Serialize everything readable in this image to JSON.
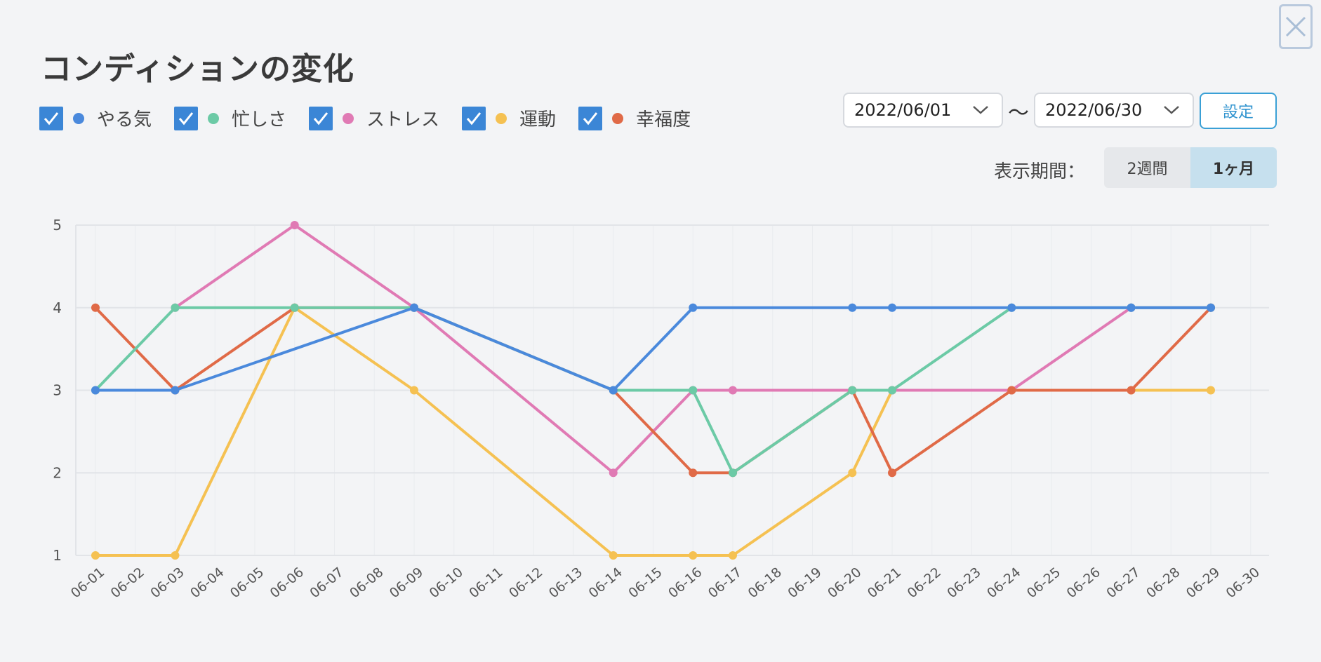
{
  "header": {
    "title": "コンディションの変化",
    "close_label": "×"
  },
  "legend": [
    {
      "label": "やる気",
      "color": "#4a89dc",
      "checked": true
    },
    {
      "label": "忙しさ",
      "color": "#6ccaa6",
      "checked": true
    },
    {
      "label": "ストレス",
      "color": "#e07ab4",
      "checked": true
    },
    {
      "label": "運動",
      "color": "#f5c152",
      "checked": true
    },
    {
      "label": "幸福度",
      "color": "#e06a47",
      "checked": true
    }
  ],
  "date_range": {
    "start": "2022/06/01",
    "separator": "〜",
    "end": "2022/06/30",
    "set_label": "設定"
  },
  "period": {
    "label": "表示期間：",
    "options": [
      "2週間",
      "1ヶ月"
    ],
    "selected": "1ヶ月"
  },
  "chart_data": {
    "type": "line",
    "title": "",
    "xlabel": "",
    "ylabel": "",
    "ylim": [
      1,
      5
    ],
    "y_ticks": [
      1,
      2,
      3,
      4,
      5
    ],
    "grid": true,
    "categories": [
      "06-01",
      "06-02",
      "06-03",
      "06-04",
      "06-05",
      "06-06",
      "06-07",
      "06-08",
      "06-09",
      "06-10",
      "06-11",
      "06-12",
      "06-13",
      "06-14",
      "06-15",
      "06-16",
      "06-17",
      "06-18",
      "06-19",
      "06-20",
      "06-21",
      "06-22",
      "06-23",
      "06-24",
      "06-25",
      "06-26",
      "06-27",
      "06-28",
      "06-29",
      "06-30"
    ],
    "series": [
      {
        "name": "運動",
        "color": "#f5c152",
        "points": [
          [
            "06-01",
            1
          ],
          [
            "06-03",
            1
          ],
          [
            "06-06",
            4
          ],
          [
            "06-09",
            3
          ],
          [
            "06-14",
            1
          ],
          [
            "06-16",
            1
          ],
          [
            "06-17",
            1
          ],
          [
            "06-20",
            2
          ],
          [
            "06-21",
            3
          ],
          [
            "06-24",
            3
          ],
          [
            "06-27",
            3
          ],
          [
            "06-29",
            3
          ]
        ]
      },
      {
        "name": "ストレス",
        "color": "#e07ab4",
        "points": [
          [
            "06-03",
            4
          ],
          [
            "06-06",
            5
          ],
          [
            "06-09",
            4
          ],
          [
            "06-14",
            2
          ],
          [
            "06-16",
            3
          ],
          [
            "06-17",
            3
          ],
          [
            "06-20",
            3
          ],
          [
            "06-21",
            3
          ],
          [
            "06-24",
            3
          ],
          [
            "06-27",
            4
          ],
          [
            "06-29",
            4
          ]
        ]
      },
      {
        "name": "幸福度",
        "color": "#e06a47",
        "points": [
          [
            "06-01",
            4
          ],
          [
            "06-03",
            3
          ],
          [
            "06-06",
            4
          ],
          [
            "06-09",
            4
          ],
          [
            "06-14",
            3
          ],
          [
            "06-16",
            2
          ],
          [
            "06-17",
            2
          ],
          [
            "06-20",
            3
          ],
          [
            "06-21",
            2
          ],
          [
            "06-24",
            3
          ],
          [
            "06-27",
            3
          ],
          [
            "06-29",
            4
          ]
        ]
      },
      {
        "name": "忙しさ",
        "color": "#6ccaa6",
        "points": [
          [
            "06-01",
            3
          ],
          [
            "06-03",
            4
          ],
          [
            "06-06",
            4
          ],
          [
            "06-09",
            4
          ],
          [
            "06-14",
            3
          ],
          [
            "06-16",
            3
          ],
          [
            "06-17",
            2
          ],
          [
            "06-20",
            3
          ],
          [
            "06-21",
            3
          ],
          [
            "06-24",
            4
          ],
          [
            "06-27",
            4
          ],
          [
            "06-29",
            4
          ]
        ]
      },
      {
        "name": "やる気",
        "color": "#4a89dc",
        "points": [
          [
            "06-01",
            3
          ],
          [
            "06-03",
            3
          ],
          [
            "06-09",
            4
          ],
          [
            "06-14",
            3
          ],
          [
            "06-16",
            4
          ],
          [
            "06-20",
            4
          ],
          [
            "06-21",
            4
          ],
          [
            "06-24",
            4
          ],
          [
            "06-27",
            4
          ],
          [
            "06-29",
            4
          ]
        ]
      }
    ]
  }
}
